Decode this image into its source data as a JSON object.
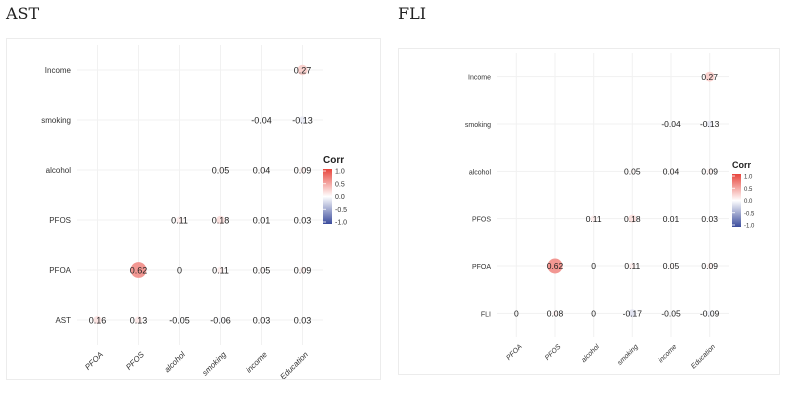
{
  "titles": {
    "ast": "AST",
    "fli": "FLI"
  },
  "chart_data": [
    {
      "type": "heatmap",
      "title": "AST",
      "x_categories": [
        "PFOA",
        "PFOS",
        "alcohol",
        "smoking",
        "income",
        "Education"
      ],
      "y_categories": [
        "Income",
        "smoking",
        "alcohol",
        "PFOS",
        "PFOA",
        "AST"
      ],
      "cells": [
        {
          "row": "Income",
          "col": "Education",
          "value": 0.27,
          "label": "0.27"
        },
        {
          "row": "smoking",
          "col": "income",
          "value": -0.04,
          "label": "-0.04"
        },
        {
          "row": "smoking",
          "col": "Education",
          "value": -0.13,
          "label": "-0.13"
        },
        {
          "row": "alcohol",
          "col": "smoking",
          "value": 0.05,
          "label": "0.05"
        },
        {
          "row": "alcohol",
          "col": "income",
          "value": 0.04,
          "label": "0.04"
        },
        {
          "row": "alcohol",
          "col": "Education",
          "value": 0.09,
          "label": "0.09"
        },
        {
          "row": "PFOS",
          "col": "alcohol",
          "value": 0.11,
          "label": "0.11"
        },
        {
          "row": "PFOS",
          "col": "smoking",
          "value": 0.18,
          "label": "0.18"
        },
        {
          "row": "PFOS",
          "col": "income",
          "value": 0.01,
          "label": "0.01"
        },
        {
          "row": "PFOS",
          "col": "Education",
          "value": 0.03,
          "label": "0.03"
        },
        {
          "row": "PFOA",
          "col": "PFOS",
          "value": 0.62,
          "label": "0.62"
        },
        {
          "row": "PFOA",
          "col": "alcohol",
          "value": 0,
          "label": "0"
        },
        {
          "row": "PFOA",
          "col": "smoking",
          "value": 0.11,
          "label": "0.11"
        },
        {
          "row": "PFOA",
          "col": "income",
          "value": 0.05,
          "label": "0.05"
        },
        {
          "row": "PFOA",
          "col": "Education",
          "value": 0.09,
          "label": "0.09"
        },
        {
          "row": "AST",
          "col": "PFOA",
          "value": 0.16,
          "label": "0.16"
        },
        {
          "row": "AST",
          "col": "PFOS",
          "value": 0.13,
          "label": "0.13"
        },
        {
          "row": "AST",
          "col": "alcohol",
          "value": -0.05,
          "label": "-0.05"
        },
        {
          "row": "AST",
          "col": "smoking",
          "value": -0.06,
          "label": "-0.06"
        },
        {
          "row": "AST",
          "col": "income",
          "value": 0.03,
          "label": "0.03"
        },
        {
          "row": "AST",
          "col": "Education",
          "value": 0.03,
          "label": "0.03"
        }
      ],
      "legend": {
        "title": "Corr",
        "ticks": [
          "1.0",
          "0.5",
          "0.0",
          "-0.5",
          "-1.0"
        ],
        "range": [
          -1,
          1
        ],
        "placement": "right"
      },
      "colors": {
        "positive": "#e8453c",
        "negative": "#3a4b9c",
        "neutral": "#ffffff"
      },
      "grid": true
    },
    {
      "type": "heatmap",
      "title": "FLI",
      "x_categories": [
        "PFOA",
        "PFOS",
        "alcohol",
        "smoking",
        "income",
        "Education"
      ],
      "y_categories": [
        "Income",
        "smoking",
        "alcohol",
        "PFOS",
        "PFOA",
        "FLI"
      ],
      "cells": [
        {
          "row": "Income",
          "col": "Education",
          "value": 0.27,
          "label": "0.27"
        },
        {
          "row": "smoking",
          "col": "income",
          "value": -0.04,
          "label": "-0.04"
        },
        {
          "row": "smoking",
          "col": "Education",
          "value": -0.13,
          "label": "-0.13"
        },
        {
          "row": "alcohol",
          "col": "smoking",
          "value": 0.05,
          "label": "0.05"
        },
        {
          "row": "alcohol",
          "col": "income",
          "value": 0.04,
          "label": "0.04"
        },
        {
          "row": "alcohol",
          "col": "Education",
          "value": 0.09,
          "label": "0.09"
        },
        {
          "row": "PFOS",
          "col": "alcohol",
          "value": 0.11,
          "label": "0.11"
        },
        {
          "row": "PFOS",
          "col": "smoking",
          "value": 0.18,
          "label": "0.18"
        },
        {
          "row": "PFOS",
          "col": "income",
          "value": 0.01,
          "label": "0.01"
        },
        {
          "row": "PFOS",
          "col": "Education",
          "value": 0.03,
          "label": "0.03"
        },
        {
          "row": "PFOA",
          "col": "PFOS",
          "value": 0.62,
          "label": "0.62"
        },
        {
          "row": "PFOA",
          "col": "alcohol",
          "value": 0,
          "label": "0"
        },
        {
          "row": "PFOA",
          "col": "smoking",
          "value": 0.11,
          "label": "0.11"
        },
        {
          "row": "PFOA",
          "col": "income",
          "value": 0.05,
          "label": "0.05"
        },
        {
          "row": "PFOA",
          "col": "Education",
          "value": 0.09,
          "label": "0.09"
        },
        {
          "row": "FLI",
          "col": "PFOA",
          "value": 0,
          "label": "0"
        },
        {
          "row": "FLI",
          "col": "PFOS",
          "value": 0.08,
          "label": "0.08"
        },
        {
          "row": "FLI",
          "col": "alcohol",
          "value": 0,
          "label": "0"
        },
        {
          "row": "FLI",
          "col": "smoking",
          "value": -0.17,
          "label": "-0.17"
        },
        {
          "row": "FLI",
          "col": "income",
          "value": -0.05,
          "label": "-0.05"
        },
        {
          "row": "FLI",
          "col": "Education",
          "value": -0.09,
          "label": "-0.09"
        }
      ],
      "legend": {
        "title": "Corr",
        "ticks": [
          "1.0",
          "0.5",
          "0.0",
          "-0.5",
          "-1.0"
        ],
        "range": [
          -1,
          1
        ],
        "placement": "right"
      },
      "colors": {
        "positive": "#e8453c",
        "negative": "#3a4b9c",
        "neutral": "#ffffff"
      },
      "grid": true
    }
  ]
}
